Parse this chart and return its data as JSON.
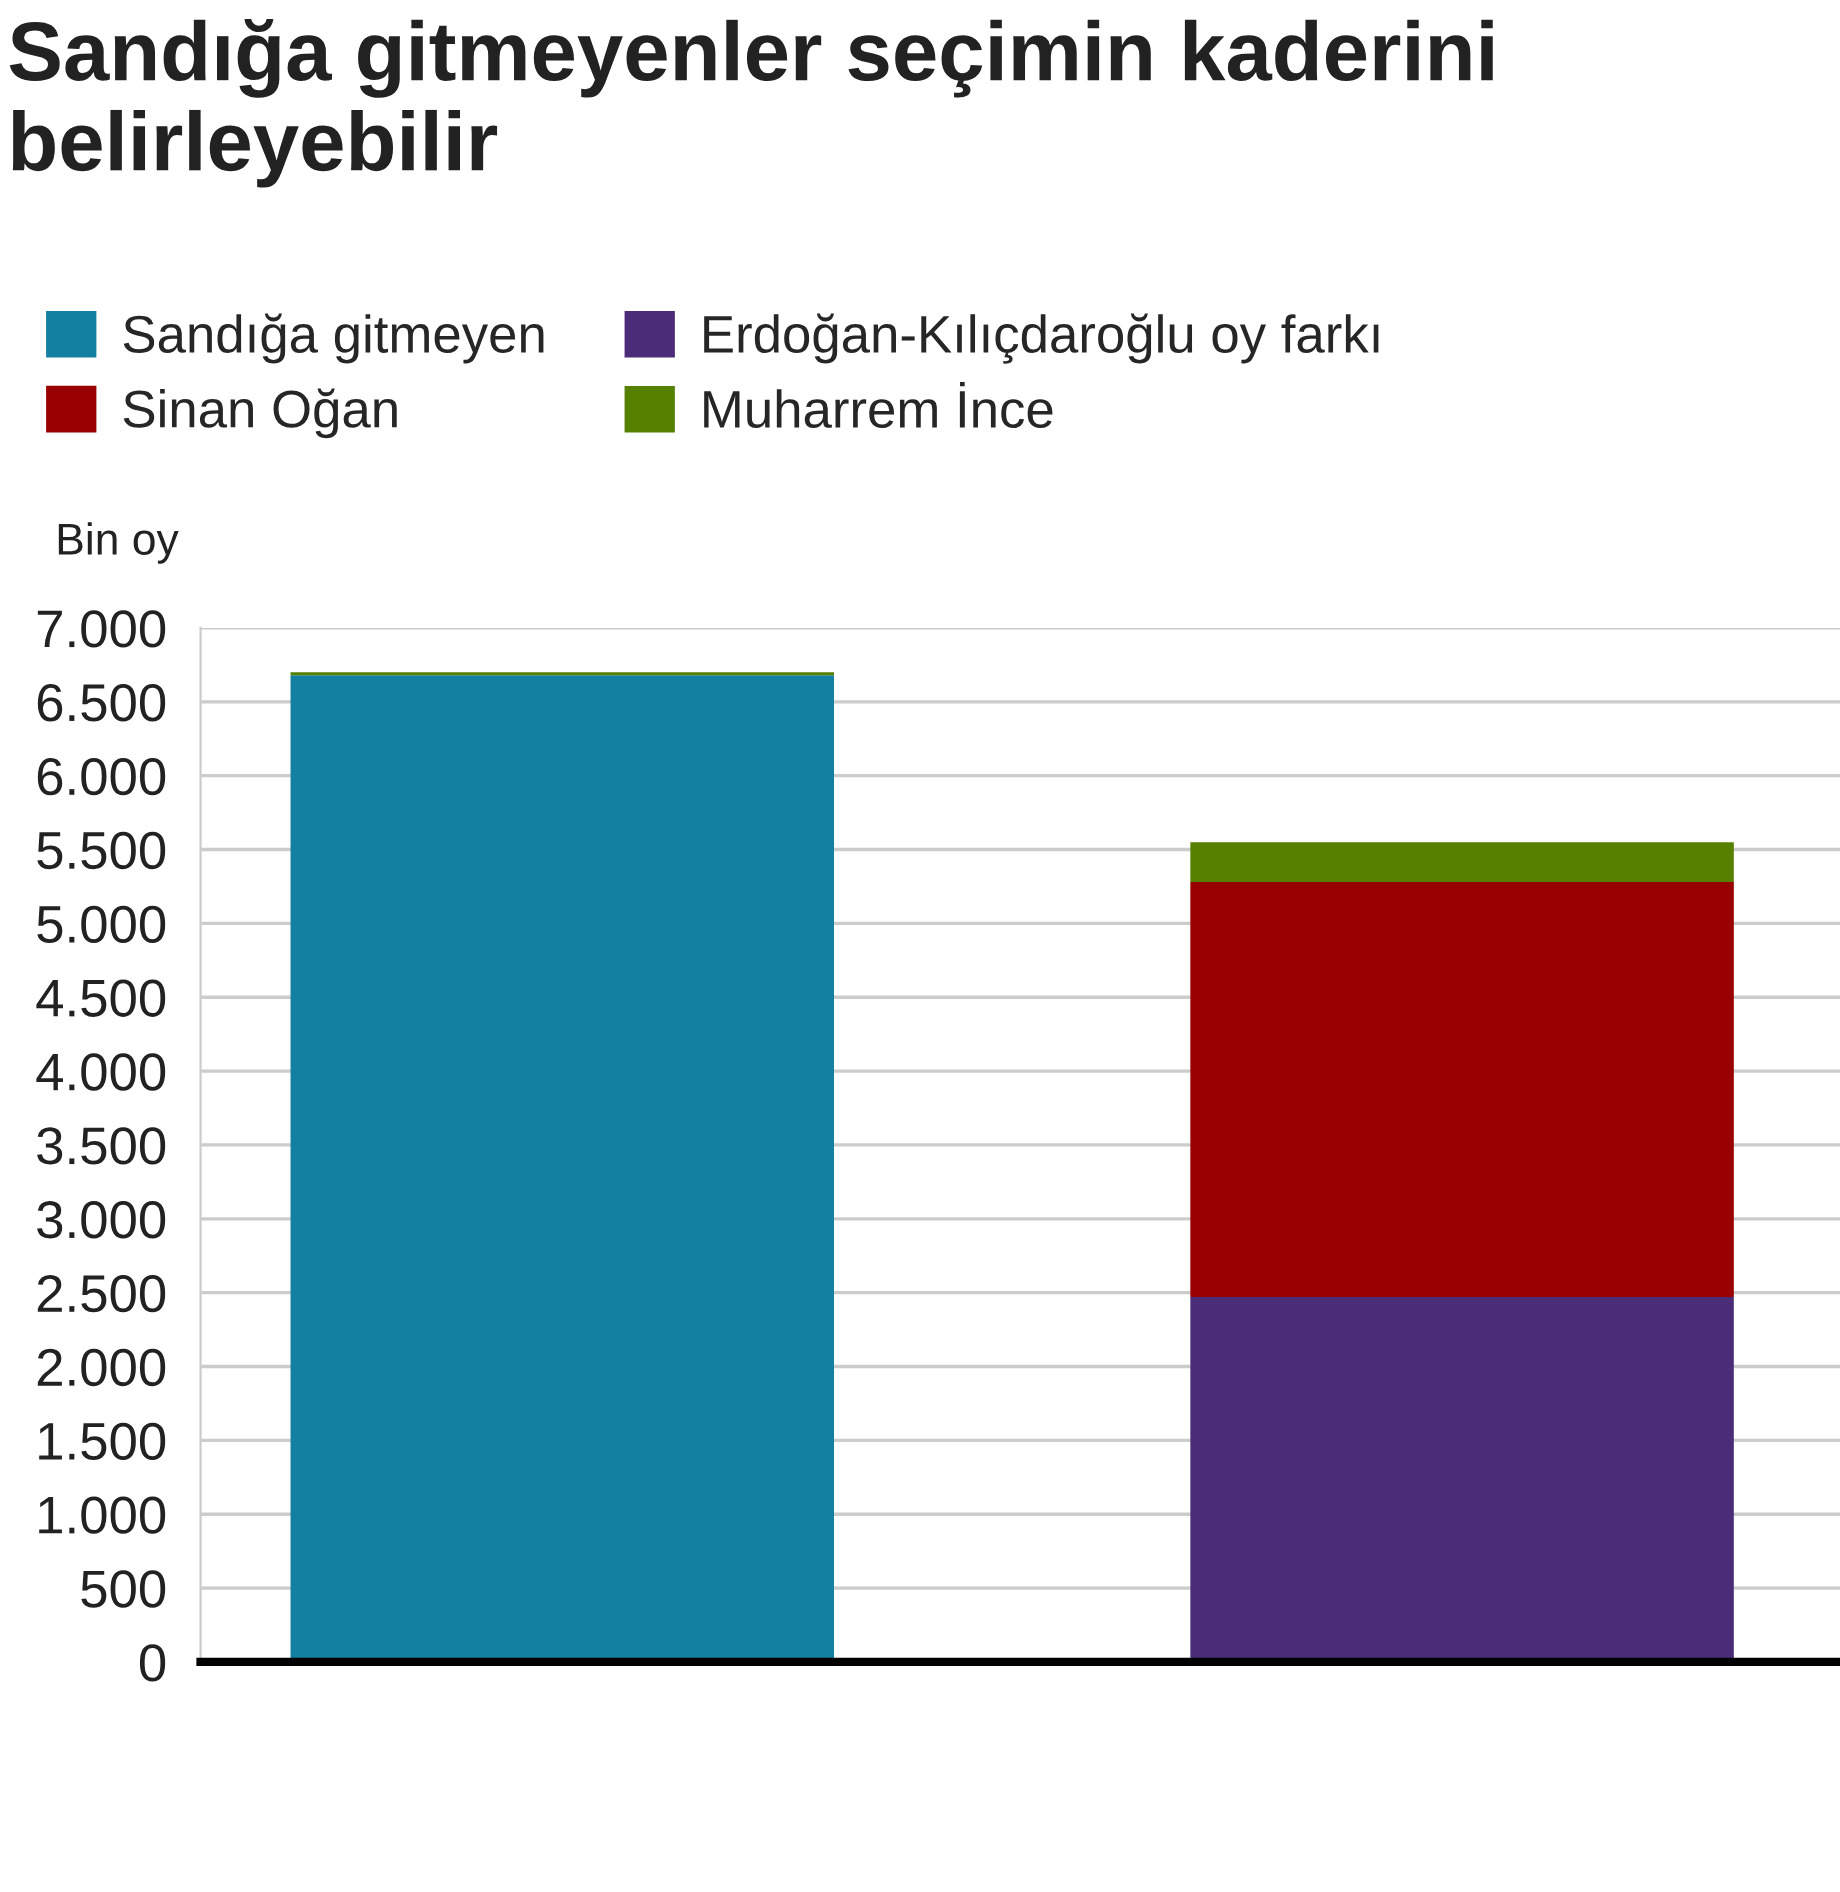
{
  "chart_data": {
    "type": "bar",
    "stacked": true,
    "title": "Sandığa gitmeyenler seçimin kaderini belirleyebilir",
    "ylabel": "Bin oy",
    "categories": [
      null,
      null
    ],
    "series": [
      {
        "name": "Sandığa gitmeyen",
        "color": "#1380a1",
        "values": [
          6680,
          null
        ]
      },
      {
        "name": "Erdoğan-Kılıçdaroğlu oy farkı",
        "color": "#4b2c79",
        "values": [
          null,
          2470
        ]
      },
      {
        "name": "Sinan Oğan",
        "color": "#990000",
        "values": [
          null,
          2810
        ]
      },
      {
        "name": "Muharrem İnce",
        "color": "#558000",
        "values": [
          20,
          270
        ]
      }
    ],
    "ylim": [
      0,
      7000
    ],
    "yticks": [
      0,
      500,
      {
        "value": 1000,
        "label": "1.000"
      },
      {
        "value": 1500,
        "label": "1.500"
      },
      {
        "value": 2000,
        "label": "2.000"
      },
      {
        "value": 2500,
        "label": "2.500"
      },
      {
        "value": 3000,
        "label": "3.000"
      },
      {
        "value": 3500,
        "label": "3.500"
      },
      {
        "value": 4000,
        "label": "4.000"
      },
      {
        "value": 4500,
        "label": "4.500"
      },
      {
        "value": 5000,
        "label": "5.000"
      },
      {
        "value": 5500,
        "label": "5.500"
      },
      {
        "value": 6000,
        "label": "6.000"
      },
      {
        "value": 6500,
        "label": "6.500"
      },
      {
        "value": 7000,
        "label": "7.000"
      }
    ],
    "grid": "y",
    "legend": "top"
  }
}
